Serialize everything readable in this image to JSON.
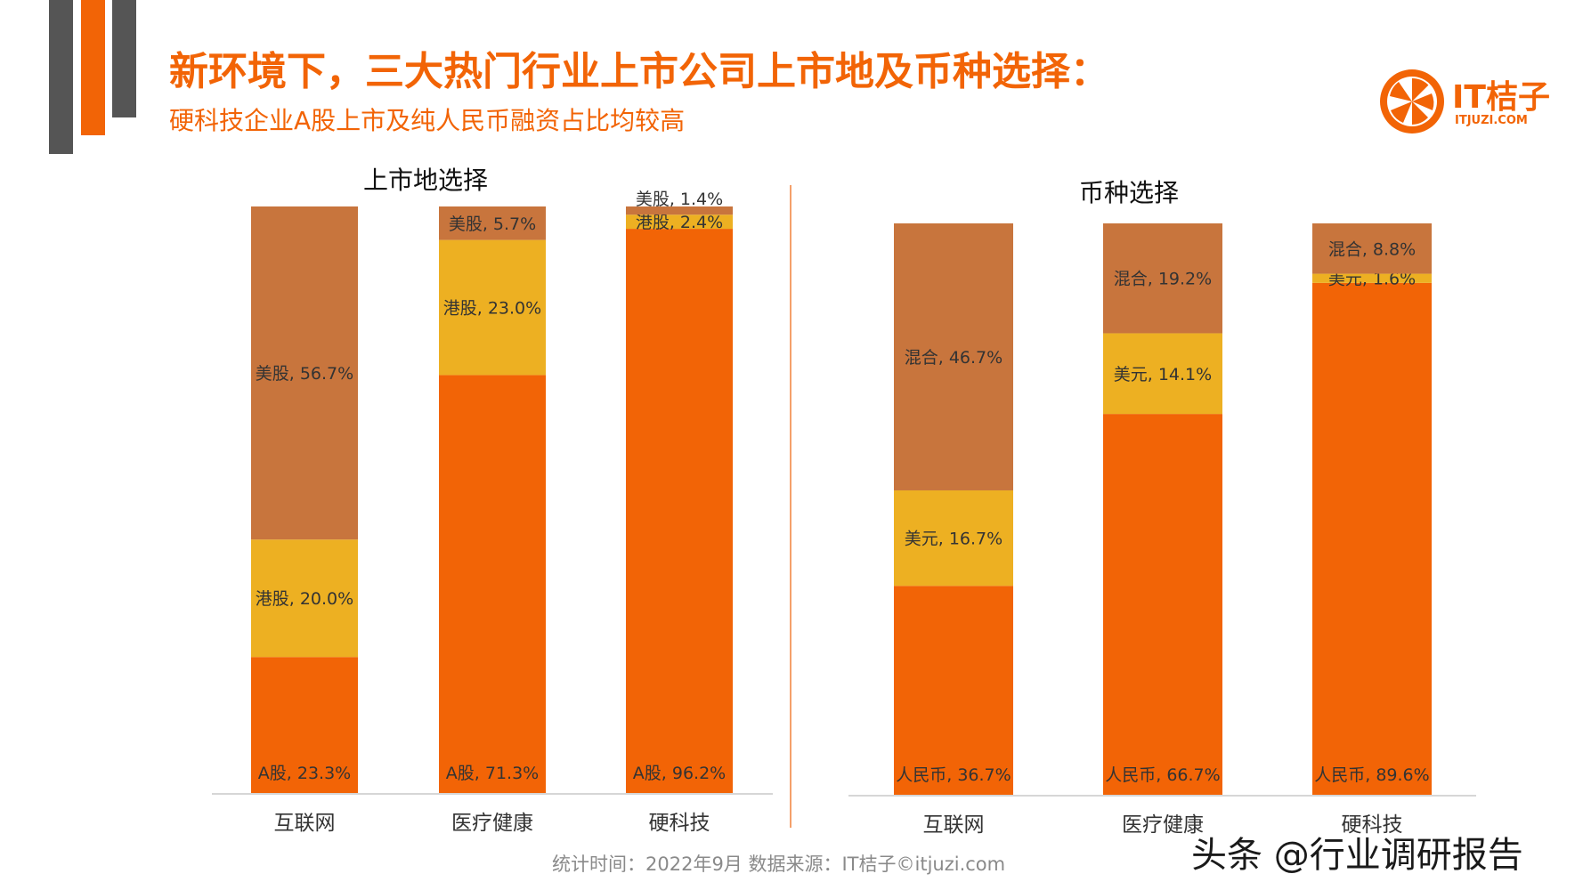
{
  "page": {
    "title": "新环境下，三大热门行业上市公司上市地及币种选择：",
    "subtitle": "硬科技企业A股上市及纯人民币融资占比均较高",
    "footnote": "统计时间：2022年9月  数据来源：IT桔子©itjuzi.com",
    "watermark": "头条 @行业调研报告"
  },
  "logo": {
    "main": "IT桔子",
    "sub": "ITJUZI.COM"
  },
  "colors": {
    "accent": "#f26406",
    "deco_gray": "#555555",
    "series_bottom": "#f26406",
    "series_middle": "#edb022",
    "series_top": "#c8753d"
  },
  "chart_data": [
    {
      "type": "bar",
      "stacked": true,
      "title": "上市地选择",
      "categories": [
        "互联网",
        "医疗健康",
        "硬科技"
      ],
      "series": [
        {
          "name": "A股",
          "values": [
            23.3,
            71.3,
            96.2
          ]
        },
        {
          "name": "港股",
          "values": [
            20.0,
            23.0,
            2.4
          ]
        },
        {
          "name": "美股",
          "values": [
            56.7,
            5.7,
            1.4
          ]
        }
      ],
      "data_labels": [
        [
          "A股, 23.3%",
          "港股, 20.0%",
          "美股, 56.7%"
        ],
        [
          "A股, 71.3%",
          "港股, 23.0%",
          "美股, 5.7%"
        ],
        [
          "A股, 96.2%",
          "港股, 2.4%",
          "美股, 1.4%"
        ]
      ],
      "ylim": [
        0,
        100
      ],
      "grid": false,
      "legend": "none"
    },
    {
      "type": "bar",
      "stacked": true,
      "title": "币种选择",
      "categories": [
        "互联网",
        "医疗健康",
        "硬科技"
      ],
      "series": [
        {
          "name": "人民币",
          "values": [
            36.7,
            66.7,
            89.6
          ]
        },
        {
          "name": "美元",
          "values": [
            16.7,
            14.1,
            1.6
          ]
        },
        {
          "name": "混合",
          "values": [
            46.7,
            19.2,
            8.8
          ]
        }
      ],
      "data_labels": [
        [
          "人民币, 36.7%",
          "美元, 16.7%",
          "混合, 46.7%"
        ],
        [
          "人民币, 66.7%",
          "美元, 14.1%",
          "混合, 19.2%"
        ],
        [
          "人民币, 89.6%",
          "美元, 1.6%",
          "混合, 8.8%"
        ]
      ],
      "ylim": [
        0,
        100
      ],
      "grid": false,
      "legend": "none"
    }
  ]
}
